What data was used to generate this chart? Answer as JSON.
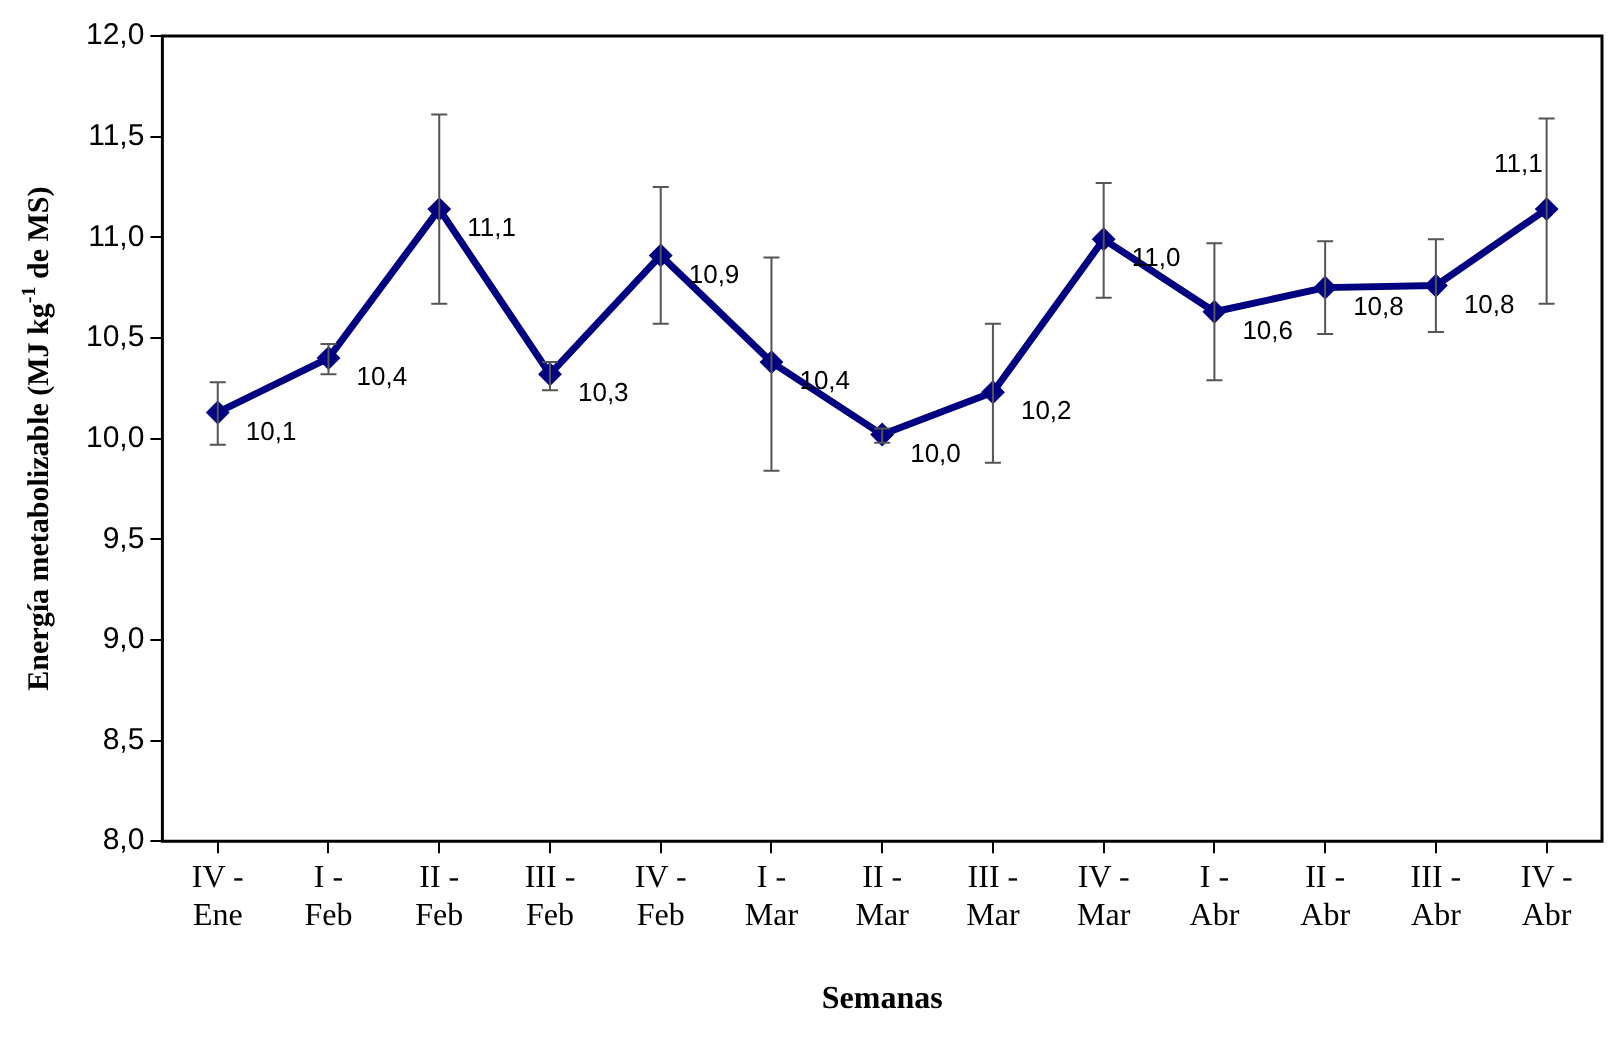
{
  "chart_data": {
    "type": "line",
    "xlabel": "Semanas",
    "ylabel": "Energía metabolizable (MJ kg$^{-1}$ de MS)",
    "categories": [
      "IV - Ene",
      "I - Feb",
      "II - Feb",
      "III - Feb",
      "IV - Feb",
      "I - Mar",
      "II - Mar",
      "III - Mar",
      "IV - Mar",
      "I - Abr",
      "II - Abr",
      "III - Abr",
      "IV - Abr"
    ],
    "series": [
      {
        "color": "#000080",
        "values": [
          10.13,
          10.4,
          11.14,
          10.32,
          10.91,
          10.38,
          10.02,
          10.23,
          10.99,
          10.63,
          10.75,
          10.76,
          11.14
        ],
        "errors": [
          [
            9.97,
            10.28
          ],
          [
            10.32,
            10.47
          ],
          [
            10.67,
            11.61
          ],
          [
            10.24,
            10.38
          ],
          [
            10.57,
            11.25
          ],
          [
            9.84,
            10.9
          ],
          [
            9.98,
            10.05
          ],
          [
            9.88,
            10.57
          ],
          [
            10.7,
            11.27
          ],
          [
            10.29,
            10.97
          ],
          [
            10.52,
            10.98
          ],
          [
            10.53,
            10.99
          ],
          [
            10.67,
            11.59
          ]
        ],
        "value_labels": [
          "10,1",
          "10,4",
          "11,1",
          "10,3",
          "10,9",
          "10,4",
          "10,0",
          "10,2",
          "11,0",
          "10,6",
          "10,8",
          "10,8",
          "11,1"
        ]
      }
    ],
    "ylim": [
      8,
      12
    ],
    "yticks": [
      {
        "value": 8,
        "label": "8,0"
      },
      {
        "value": 8.5,
        "label": "8,5"
      },
      {
        "value": 9,
        "label": "9,0"
      },
      {
        "value": 9.5,
        "label": "9,5"
      },
      {
        "value": 10,
        "label": "10,0"
      },
      {
        "value": 10.5,
        "label": "10,5"
      },
      {
        "value": 11,
        "label": "11,0"
      },
      {
        "value": 11.5,
        "label": "11,5"
      },
      {
        "value": 12,
        "label": "12,0"
      }
    ],
    "grid": false,
    "legend": false,
    "marker": "diamond",
    "line_style": "solid"
  }
}
